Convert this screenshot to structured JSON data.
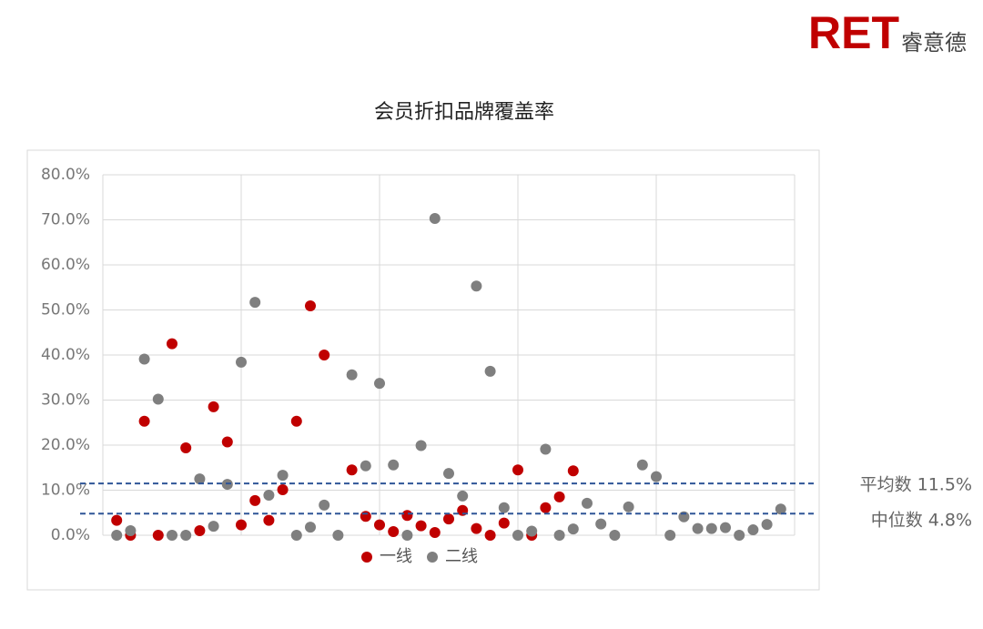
{
  "logo": {
    "brand": "RET",
    "name": "睿意德"
  },
  "chart_data": {
    "type": "scatter",
    "title": "会员折扣品牌覆盖率",
    "x": [
      1,
      2,
      3,
      4,
      5,
      6,
      7,
      8,
      9,
      10,
      11,
      12,
      13,
      14,
      15,
      16,
      17,
      18,
      19,
      20,
      21,
      22,
      23,
      24,
      25,
      26,
      27,
      28,
      29,
      30,
      31,
      32,
      33,
      34,
      35,
      36,
      37,
      38,
      39,
      40,
      41,
      42,
      43,
      44,
      45,
      46,
      47,
      48,
      49
    ],
    "series": [
      {
        "name": "一线",
        "color": "#c00000",
        "values": [
          3.3,
          0,
          25.3,
          0,
          42.5,
          19.4,
          1.0,
          28.5,
          20.7,
          2.3,
          7.7,
          3.3,
          10.1,
          25.3,
          50.9,
          40.0,
          null,
          14.5,
          4.2,
          2.3,
          0.8,
          4.4,
          2.1,
          0.6,
          3.6,
          5.5,
          1.5,
          0,
          2.7,
          14.5,
          0,
          6.1,
          8.5,
          14.3,
          null,
          null,
          null,
          null,
          null,
          null,
          null,
          null,
          null,
          null,
          null,
          null,
          null,
          null,
          null
        ]
      },
      {
        "name": "二线",
        "color": "#7f7f7f",
        "values": [
          0,
          1.0,
          39.1,
          30.2,
          0,
          0,
          12.5,
          2.0,
          11.3,
          38.4,
          51.7,
          8.9,
          13.3,
          0,
          1.8,
          6.7,
          0,
          35.6,
          15.4,
          33.7,
          15.6,
          0,
          19.9,
          70.3,
          13.7,
          8.7,
          55.3,
          36.4,
          6.1,
          0,
          0.9,
          19.1,
          0,
          1.4,
          7.1,
          2.5,
          0,
          6.3,
          15.6,
          13.0,
          0,
          4.1,
          1.5,
          1.5,
          1.7,
          0,
          1.2,
          2.4,
          5.8
        ]
      }
    ],
    "xlim": [
      0,
      50
    ],
    "xticks": [
      0,
      10,
      20,
      30,
      40,
      50
    ],
    "ylim": [
      0,
      80
    ],
    "yticks": [
      {
        "value": 0,
        "label": "0.0%"
      },
      {
        "value": 10,
        "label": "10.0%"
      },
      {
        "value": 20,
        "label": "20.0%"
      },
      {
        "value": 30,
        "label": "30.0%"
      },
      {
        "value": 40,
        "label": "40.0%"
      },
      {
        "value": 50,
        "label": "50.0%"
      },
      {
        "value": 60,
        "label": "60.0%"
      },
      {
        "value": 70,
        "label": "70.0%"
      },
      {
        "value": 80,
        "label": "80.0%"
      }
    ],
    "grid": true,
    "reference_lines": [
      {
        "value": 11.5,
        "label": "平均数 11.5%",
        "color": "#2f5597"
      },
      {
        "value": 4.8,
        "label": "中位数 4.8%",
        "color": "#2f5597"
      }
    ]
  }
}
